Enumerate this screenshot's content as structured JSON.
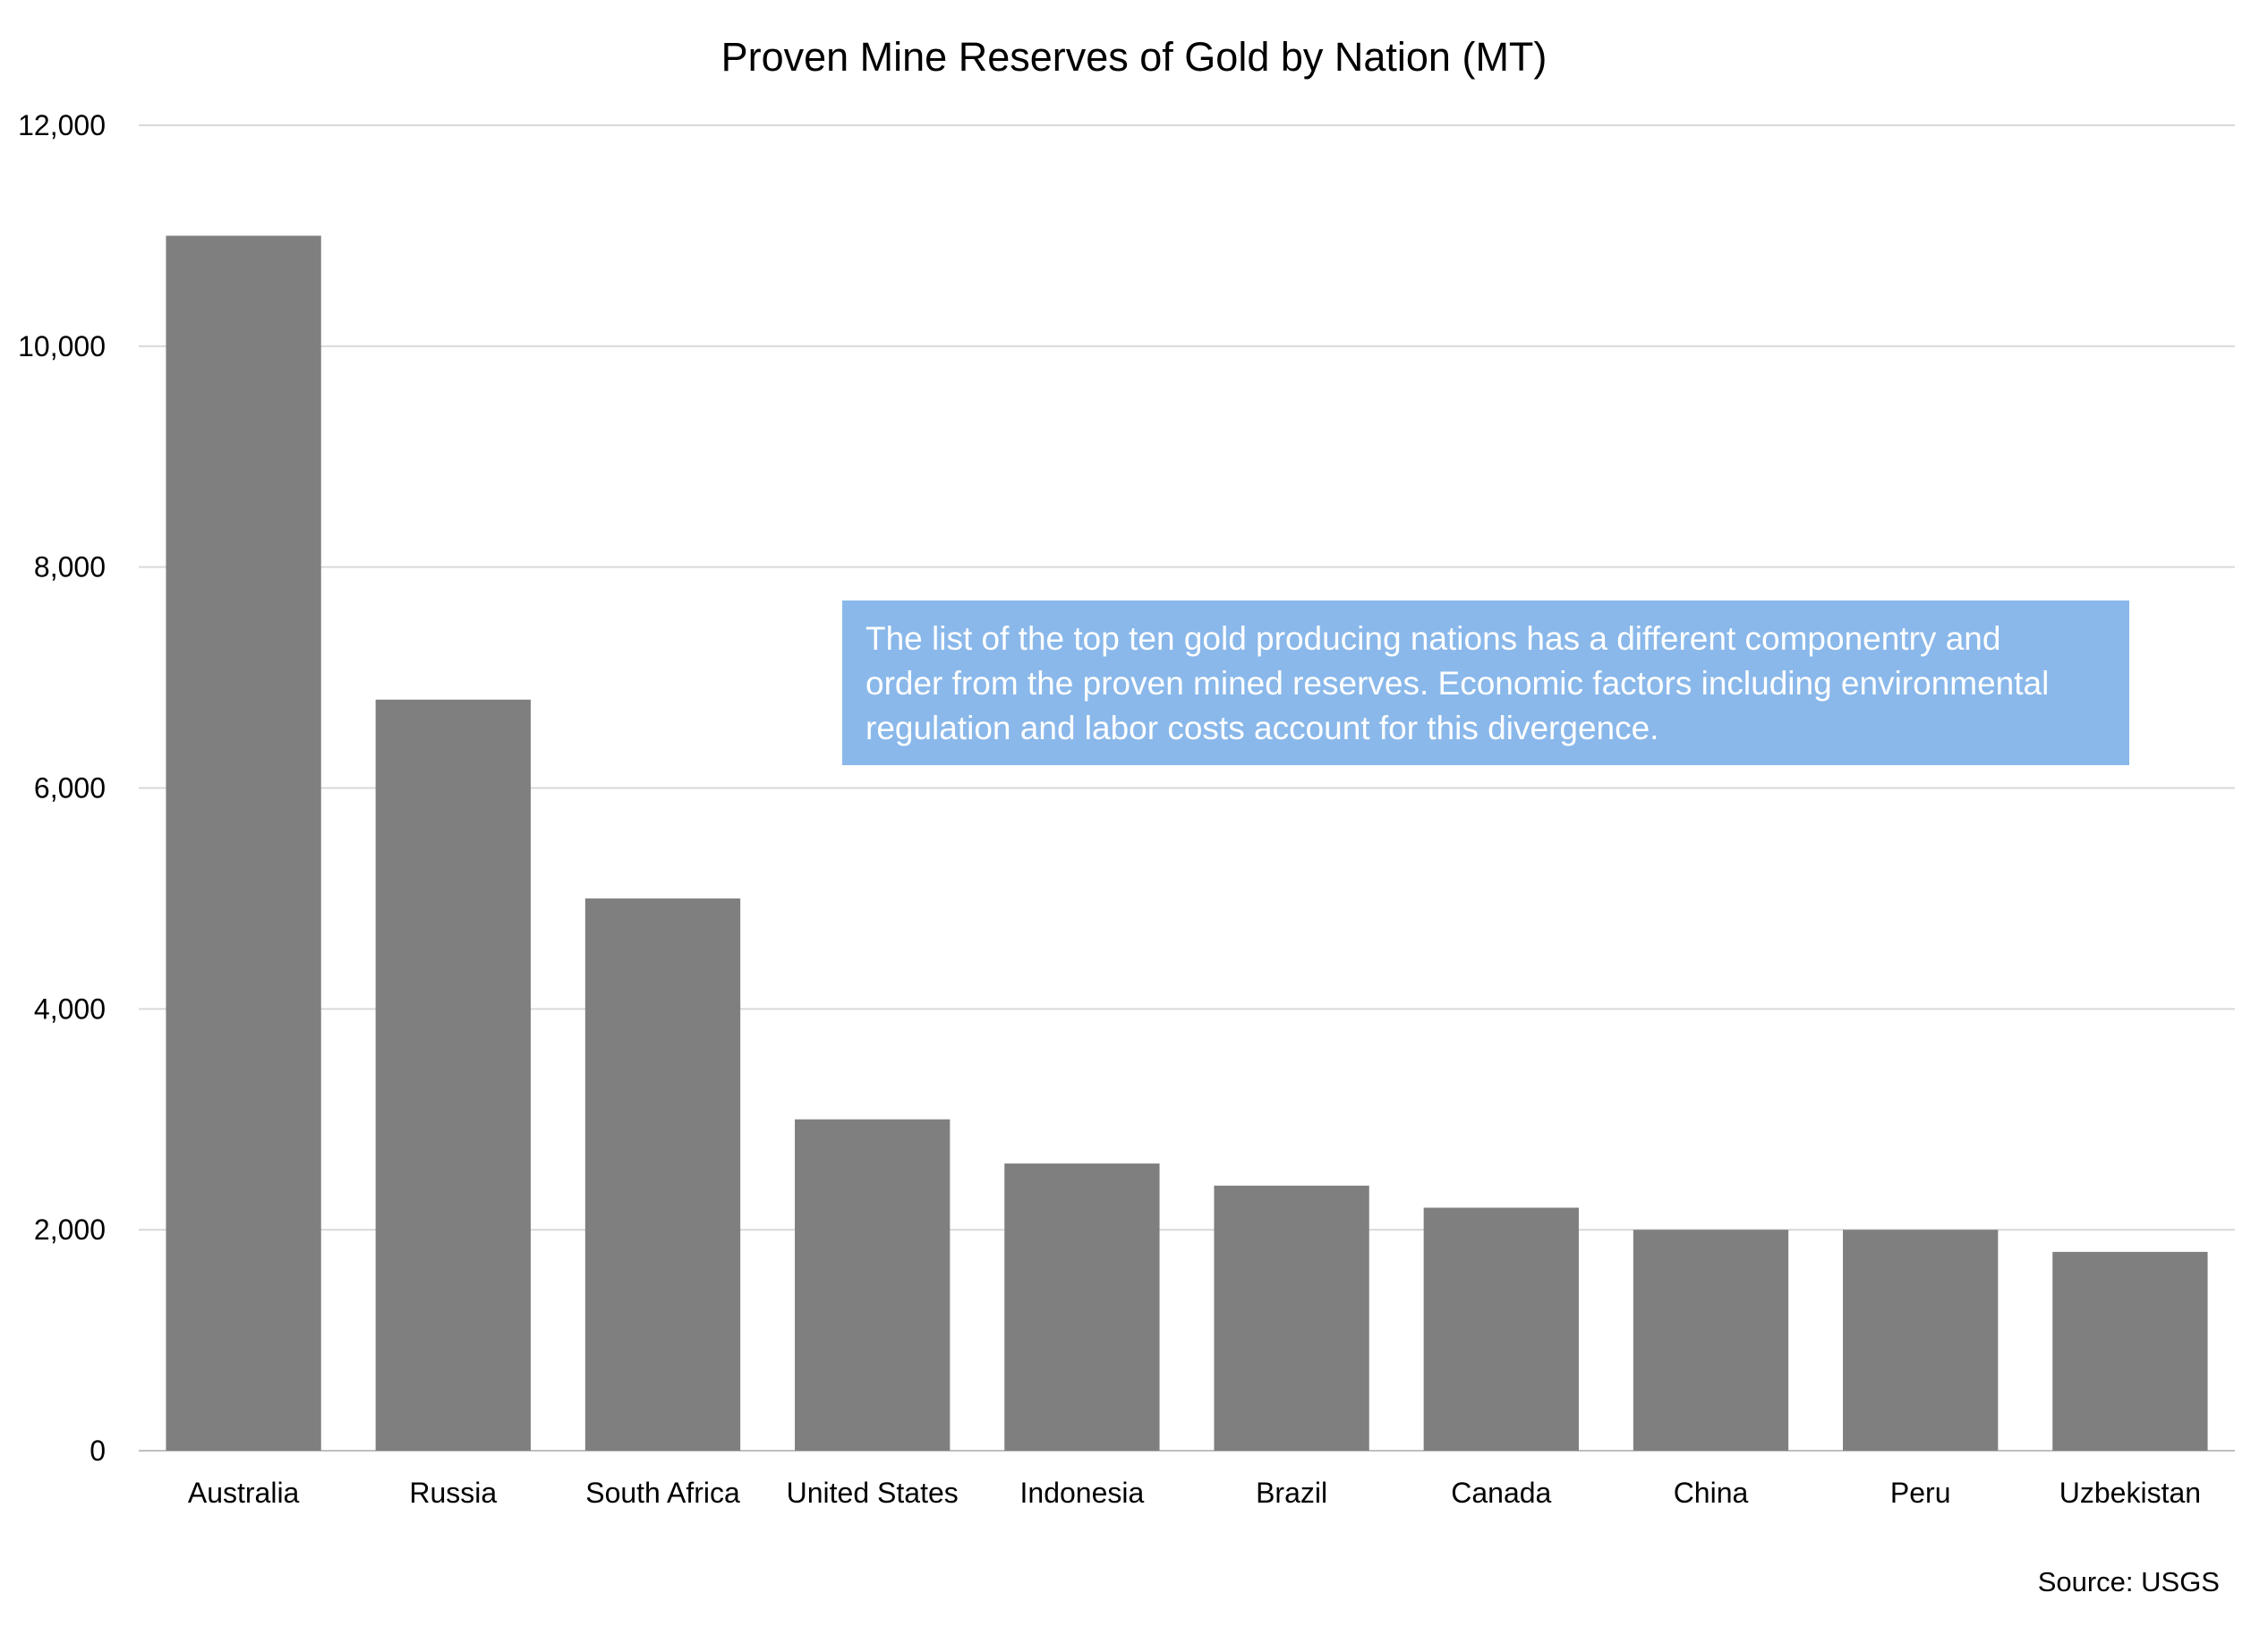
{
  "chart_data": {
    "type": "bar",
    "title": "Proven Mine Reserves of Gold by Nation (MT)",
    "xlabel": "",
    "ylabel": "",
    "categories": [
      "Australia",
      "Russia",
      "South Africa",
      "United States",
      "Indonesia",
      "Brazil",
      "Canada",
      "China",
      "Peru",
      "Uzbekistan"
    ],
    "values": [
      11000,
      6800,
      5000,
      3000,
      2600,
      2400,
      2200,
      2000,
      2000,
      1800
    ],
    "ylim": [
      0,
      12000
    ],
    "yticks": [
      0,
      2000,
      4000,
      6000,
      8000,
      10000,
      12000
    ],
    "ytick_labels": [
      "0",
      "2,000",
      "4,000",
      "6,000",
      "8,000",
      "10,000",
      "12,000"
    ],
    "grid": true,
    "legend": "none",
    "bar_color": "#7f7f7f",
    "grid_color": "#d9d9d9",
    "annotation": {
      "lines": [
        "The list of the top ten gold producing nations has a different componentry and",
        "order from the proven mined reserves. Economic factors including environmental",
        "regulation  and labor costs account for this divergence."
      ],
      "background": "#8ab8ea",
      "text_color": "#ffffff"
    },
    "source": "Source: USGS"
  }
}
